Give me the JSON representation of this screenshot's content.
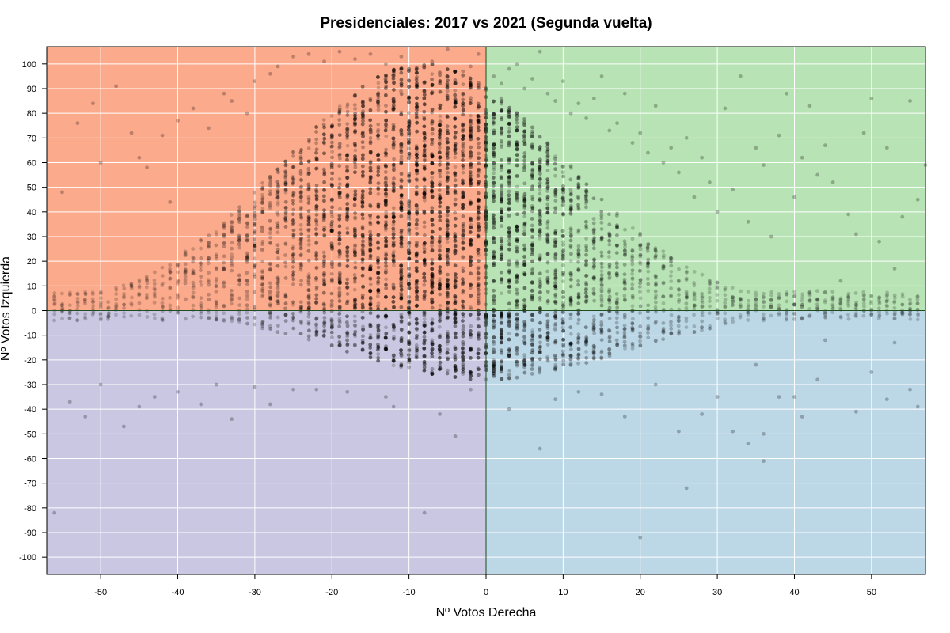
{
  "chart_data": {
    "type": "scatter",
    "title": "Presidenciales: 2017 vs 2021 (Segunda vuelta)",
    "xlabel": "Nº Votos Derecha",
    "ylabel": "Nº Votos Izquierda",
    "xlim": [
      -57,
      57
    ],
    "ylim": [
      -107,
      107
    ],
    "x_ticks": [
      -50,
      -40,
      -30,
      -20,
      -10,
      0,
      10,
      20,
      30,
      40,
      50
    ],
    "y_ticks": [
      100,
      90,
      80,
      70,
      60,
      50,
      40,
      30,
      20,
      10,
      0,
      -10,
      -20,
      -30,
      -40,
      -50,
      -60,
      -70,
      -80,
      -90,
      -100
    ],
    "grid": true,
    "quadrants": [
      {
        "position": "top-left",
        "color": "#fcaa8c"
      },
      {
        "position": "top-right",
        "color": "#b8e3b5"
      },
      {
        "position": "bottom-left",
        "color": "#c9c7e1"
      },
      {
        "position": "bottom-right",
        "color": "#bcd7e6"
      }
    ],
    "point_color": "#000000",
    "point_opacity": 0.25,
    "points": [
      [
        -55,
        48
      ],
      [
        -53,
        76
      ],
      [
        -51,
        84
      ],
      [
        -50,
        60
      ],
      [
        -48,
        91
      ],
      [
        -46,
        72
      ],
      [
        -45,
        62
      ],
      [
        -44,
        58
      ],
      [
        -42,
        71
      ],
      [
        -41,
        44
      ],
      [
        -40,
        77
      ],
      [
        -38,
        82
      ],
      [
        -36,
        74
      ],
      [
        -34,
        88
      ],
      [
        -33,
        85
      ],
      [
        -31,
        80
      ],
      [
        -30,
        93
      ],
      [
        -28,
        96
      ],
      [
        -27,
        99
      ],
      [
        -25,
        103
      ],
      [
        -23,
        104
      ],
      [
        -21,
        101
      ],
      [
        -19,
        105
      ],
      [
        -17,
        102
      ],
      [
        -15,
        104
      ],
      [
        -13,
        100
      ],
      [
        -11,
        103
      ],
      [
        -9,
        98
      ],
      [
        -7,
        101
      ],
      [
        -5,
        106
      ],
      [
        -3,
        97
      ],
      [
        -2,
        99
      ],
      [
        -1,
        104
      ],
      [
        1,
        95
      ],
      [
        2,
        92
      ],
      [
        3,
        98
      ],
      [
        4,
        100
      ],
      [
        5,
        90
      ],
      [
        6,
        94
      ],
      [
        7,
        105
      ],
      [
        8,
        88
      ],
      [
        9,
        85
      ],
      [
        10,
        93
      ],
      [
        11,
        80
      ],
      [
        12,
        84
      ],
      [
        13,
        78
      ],
      [
        14,
        86
      ],
      [
        15,
        95
      ],
      [
        16,
        73
      ],
      [
        17,
        76
      ],
      [
        18,
        88
      ],
      [
        19,
        68
      ],
      [
        20,
        72
      ],
      [
        21,
        64
      ],
      [
        22,
        83
      ],
      [
        23,
        60
      ],
      [
        24,
        66
      ],
      [
        25,
        56
      ],
      [
        26,
        70
      ],
      [
        27,
        46
      ],
      [
        28,
        62
      ],
      [
        29,
        52
      ],
      [
        30,
        40
      ],
      [
        31,
        82
      ],
      [
        32,
        49
      ],
      [
        33,
        95
      ],
      [
        34,
        36
      ],
      [
        35,
        66
      ],
      [
        36,
        59
      ],
      [
        37,
        30
      ],
      [
        38,
        71
      ],
      [
        39,
        88
      ],
      [
        40,
        46
      ],
      [
        41,
        62
      ],
      [
        42,
        83
      ],
      [
        43,
        55
      ],
      [
        44,
        67
      ],
      [
        45,
        52
      ],
      [
        46,
        12
      ],
      [
        47,
        39
      ],
      [
        48,
        31
      ],
      [
        49,
        72
      ],
      [
        50,
        86
      ],
      [
        51,
        28
      ],
      [
        52,
        66
      ],
      [
        53,
        17
      ],
      [
        54,
        38
      ],
      [
        55,
        85
      ],
      [
        56,
        45
      ],
      [
        57,
        59
      ],
      [
        -56,
        -82
      ],
      [
        -54,
        -37
      ],
      [
        -52,
        -43
      ],
      [
        -50,
        -30
      ],
      [
        -47,
        -47
      ],
      [
        -45,
        -39
      ],
      [
        -43,
        -35
      ],
      [
        -40,
        -33
      ],
      [
        -37,
        -38
      ],
      [
        -35,
        -30
      ],
      [
        -33,
        -44
      ],
      [
        -30,
        -31
      ],
      [
        -28,
        -38
      ],
      [
        -25,
        -32
      ],
      [
        -22,
        -32
      ],
      [
        -18,
        -33
      ],
      [
        -13,
        -35
      ],
      [
        -12,
        -39
      ],
      [
        -8,
        -82
      ],
      [
        -6,
        -42
      ],
      [
        -4,
        -51
      ],
      [
        -2,
        -32
      ],
      [
        3,
        -40
      ],
      [
        7,
        -56
      ],
      [
        9,
        -36
      ],
      [
        12,
        -33
      ],
      [
        15,
        -34
      ],
      [
        18,
        -43
      ],
      [
        20,
        -92
      ],
      [
        22,
        -30
      ],
      [
        25,
        -49
      ],
      [
        26,
        -72
      ],
      [
        28,
        -42
      ],
      [
        30,
        -35
      ],
      [
        32,
        -49
      ],
      [
        34,
        -54
      ],
      [
        36,
        -61
      ],
      [
        36,
        -50
      ],
      [
        38,
        -35
      ],
      [
        40,
        -35
      ],
      [
        41,
        -43
      ],
      [
        43,
        -28
      ],
      [
        48,
        -41
      ],
      [
        50,
        -25
      ],
      [
        52,
        -36
      ],
      [
        55,
        -32
      ],
      [
        56,
        -39
      ],
      [
        53,
        -13
      ],
      [
        44,
        -12
      ],
      [
        35,
        -22
      ]
    ],
    "density_note": ""
  }
}
